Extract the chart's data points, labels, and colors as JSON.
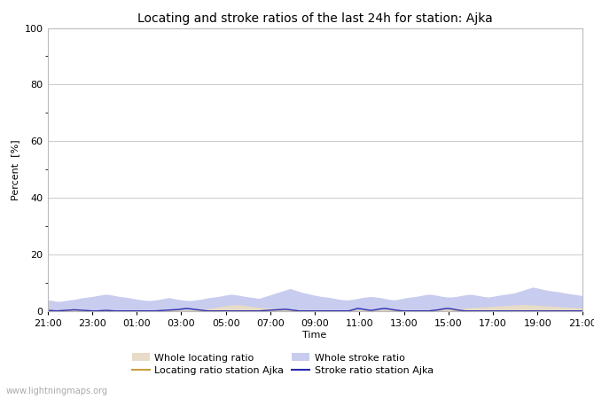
{
  "title": "Locating and stroke ratios of the last 24h for station: Ajka",
  "xlabel": "Time",
  "ylabel": "Percent  [%]",
  "ylim": [
    0,
    100
  ],
  "yticks": [
    0,
    20,
    40,
    60,
    80,
    100
  ],
  "yticks_minor": [
    10,
    30,
    50,
    70,
    90
  ],
  "x_labels": [
    "21:00",
    "23:00",
    "01:00",
    "03:00",
    "05:00",
    "07:00",
    "09:00",
    "11:00",
    "13:00",
    "15:00",
    "17:00",
    "19:00",
    "21:00"
  ],
  "background_color": "#ffffff",
  "plot_bg_color": "#ffffff",
  "grid_color": "#cccccc",
  "watermark": "www.lightningmaps.org",
  "whole_locating_fill_color": "#e8dcc8",
  "whole_stroke_fill_color": "#c8ccee",
  "locating_line_color": "#c8a040",
  "stroke_line_color": "#2828b0",
  "whole_locating_ratio": [
    0.5,
    0.5,
    0.5,
    0.5,
    0.5,
    0.4,
    0.4,
    0.4,
    0.4,
    0.4,
    0.4,
    0.4,
    0.4,
    0.4,
    0.4,
    0.4,
    0.4,
    0.4,
    0.4,
    0.4,
    0.4,
    0.4,
    0.4,
    0.4,
    0.4,
    0.4,
    0.4,
    0.4,
    0.4,
    0.4,
    0.4,
    0.4,
    0.4,
    0.5,
    0.6,
    0.8,
    1.0,
    1.2,
    1.5,
    1.8,
    2.0,
    2.2,
    2.3,
    2.2,
    2.0,
    1.8,
    1.6,
    1.4,
    1.2,
    1.0,
    0.9,
    0.8,
    0.7,
    0.7,
    0.6,
    0.6,
    0.5,
    0.5,
    0.4,
    0.4,
    0.4,
    0.4,
    0.4,
    0.4,
    0.4,
    0.4,
    0.4,
    0.4,
    0.4,
    0.4,
    0.4,
    0.4,
    0.4,
    0.4,
    0.5,
    0.5,
    0.5,
    0.5,
    0.5,
    0.5,
    0.5,
    0.5,
    0.5,
    0.5,
    0.5,
    0.5,
    0.5,
    0.5,
    0.6,
    0.7,
    0.8,
    0.9,
    1.0,
    1.1,
    1.2,
    1.3,
    1.4,
    1.5,
    1.6,
    1.7,
    1.8,
    1.9,
    2.0,
    2.1,
    2.2,
    2.3,
    2.4,
    2.3,
    2.2,
    2.1,
    2.0,
    1.9,
    1.8,
    1.7,
    1.6,
    1.5,
    1.4,
    1.3,
    1.2,
    1.1
  ],
  "whole_stroke_ratio": [
    4.0,
    3.8,
    3.5,
    3.5,
    3.8,
    4.0,
    4.2,
    4.5,
    4.8,
    5.0,
    5.2,
    5.5,
    5.8,
    6.0,
    5.8,
    5.5,
    5.2,
    5.0,
    4.8,
    4.5,
    4.2,
    4.0,
    3.8,
    3.8,
    4.0,
    4.2,
    4.5,
    4.8,
    4.5,
    4.2,
    4.0,
    3.8,
    3.8,
    4.0,
    4.2,
    4.5,
    4.8,
    5.0,
    5.2,
    5.5,
    5.8,
    6.0,
    5.8,
    5.5,
    5.2,
    5.0,
    4.8,
    4.5,
    5.0,
    5.5,
    6.0,
    6.5,
    7.0,
    7.5,
    8.0,
    7.5,
    7.0,
    6.5,
    6.2,
    5.8,
    5.5,
    5.2,
    5.0,
    4.8,
    4.5,
    4.2,
    4.0,
    4.0,
    4.2,
    4.5,
    4.8,
    5.0,
    5.2,
    5.0,
    4.8,
    4.5,
    4.2,
    4.0,
    4.2,
    4.5,
    4.8,
    5.0,
    5.2,
    5.5,
    5.8,
    6.0,
    5.8,
    5.5,
    5.2,
    5.0,
    5.0,
    5.2,
    5.5,
    5.8,
    6.0,
    5.8,
    5.5,
    5.2,
    5.0,
    5.2,
    5.5,
    5.8,
    6.0,
    6.2,
    6.5,
    7.0,
    7.5,
    8.0,
    8.5,
    8.2,
    7.8,
    7.5,
    7.2,
    7.0,
    6.8,
    6.5,
    6.2,
    6.0,
    5.8,
    5.5
  ],
  "locating_station_ratio": [
    0.0,
    0.0,
    0.0,
    0.0,
    0.0,
    0.0,
    0.0,
    0.0,
    0.0,
    0.0,
    0.0,
    0.0,
    0.0,
    0.0,
    0.0,
    0.0,
    0.0,
    0.0,
    0.0,
    0.0,
    0.0,
    0.0,
    0.0,
    0.0,
    0.0,
    0.0,
    0.0,
    0.0,
    0.0,
    0.0,
    0.0,
    0.0,
    0.0,
    0.0,
    0.0,
    0.0,
    0.0,
    0.0,
    0.0,
    0.0,
    0.0,
    0.0,
    0.0,
    0.0,
    0.0,
    0.0,
    0.0,
    0.0,
    0.0,
    0.0,
    0.0,
    0.0,
    0.0,
    0.0,
    0.0,
    0.0,
    0.0,
    0.0,
    0.0,
    0.0,
    0.0,
    0.0,
    0.0,
    0.0,
    0.0,
    0.0,
    0.0,
    0.0,
    0.0,
    0.0,
    0.0,
    0.0,
    0.0,
    0.0,
    0.0,
    0.0,
    0.0,
    0.0,
    0.0,
    0.0,
    0.0,
    0.0,
    0.0,
    0.0,
    0.0,
    0.0,
    0.0,
    0.0,
    0.0,
    0.0,
    0.0,
    0.0,
    0.0,
    0.0,
    0.0,
    0.0,
    0.0,
    0.0,
    0.0,
    0.0,
    0.0,
    0.0,
    0.0,
    0.0,
    0.0,
    0.0,
    0.0,
    0.0,
    0.0,
    0.0,
    0.0,
    0.0,
    0.0,
    0.0,
    0.0,
    0.0,
    0.0,
    0.0,
    0.0,
    0.0
  ],
  "stroke_station_ratio": [
    0.3,
    0.2,
    0.1,
    0.2,
    0.3,
    0.4,
    0.5,
    0.4,
    0.3,
    0.2,
    0.1,
    0.1,
    0.2,
    0.3,
    0.2,
    0.1,
    0.1,
    0.1,
    0.1,
    0.1,
    0.1,
    0.1,
    0.1,
    0.1,
    0.1,
    0.2,
    0.3,
    0.4,
    0.5,
    0.6,
    0.8,
    1.0,
    0.8,
    0.6,
    0.4,
    0.2,
    0.1,
    0.1,
    0.1,
    0.1,
    0.1,
    0.1,
    0.1,
    0.1,
    0.1,
    0.1,
    0.1,
    0.1,
    0.2,
    0.3,
    0.4,
    0.5,
    0.6,
    0.7,
    0.5,
    0.3,
    0.1,
    0.1,
    0.1,
    0.1,
    0.1,
    0.1,
    0.1,
    0.1,
    0.1,
    0.1,
    0.1,
    0.1,
    0.5,
    1.0,
    0.8,
    0.5,
    0.3,
    0.5,
    0.8,
    1.0,
    0.8,
    0.5,
    0.3,
    0.1,
    0.1,
    0.1,
    0.1,
    0.1,
    0.1,
    0.1,
    0.3,
    0.5,
    0.8,
    1.0,
    0.8,
    0.5,
    0.3,
    0.1,
    0.1,
    0.1,
    0.1,
    0.1,
    0.1,
    0.1,
    0.1,
    0.1,
    0.1,
    0.1,
    0.1,
    0.1,
    0.1,
    0.1,
    0.1,
    0.1,
    0.1,
    0.1,
    0.1,
    0.1,
    0.1,
    0.1,
    0.1,
    0.1,
    0.1,
    0.1
  ],
  "n_points": 120,
  "title_fontsize": 10,
  "axis_fontsize": 8,
  "tick_fontsize": 8,
  "legend_fontsize": 8,
  "figsize": [
    6.7,
    4.5
  ],
  "dpi": 100
}
